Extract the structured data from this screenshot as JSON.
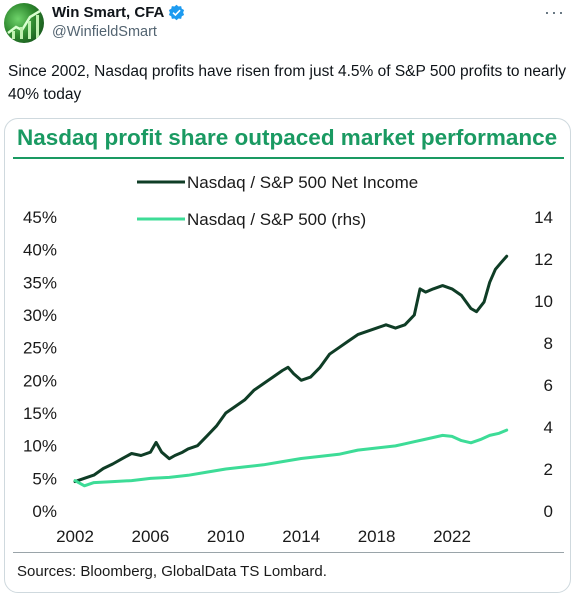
{
  "tweet": {
    "display_name": "Win Smart, CFA",
    "handle": "@WinfieldSmart",
    "more_label": "···",
    "text": "Since 2002, Nasdaq profits have risen from just 4.5% of S&P 500 profits to nearly 40% today"
  },
  "colors": {
    "title": "#1a9a62",
    "net_income_line": "#0f3d26",
    "rhs_line": "#3ddc97",
    "verified": "#1d9bf0"
  },
  "chart_data": {
    "type": "line",
    "title": "Nasdaq profit share outpaced market performance",
    "sources": "Sources: Bloomberg, GlobalData TS Lombard.",
    "x_ticks": [
      "2002",
      "2006",
      "2010",
      "2014",
      "2018",
      "2022"
    ],
    "y_left_ticks": [
      "0%",
      "5%",
      "10%",
      "15%",
      "20%",
      "25%",
      "30%",
      "35%",
      "40%",
      "45%"
    ],
    "y_right_ticks": [
      "0",
      "2",
      "4",
      "6",
      "8",
      "10",
      "12",
      "14"
    ],
    "xlim": [
      2002,
      2025.5
    ],
    "ylim_left": [
      0,
      45
    ],
    "ylim_right": [
      0,
      14
    ],
    "legend_placement": "top-center",
    "series": [
      {
        "name": "Nasdaq / S&P 500 Net Income",
        "axis": "left",
        "x": [
          2002.0,
          2002.5,
          2003.0,
          2003.5,
          2004.0,
          2004.5,
          2005.0,
          2005.5,
          2006.0,
          2006.3,
          2006.6,
          2007.0,
          2007.3,
          2007.7,
          2008.0,
          2008.5,
          2009.0,
          2009.5,
          2010.0,
          2010.5,
          2011.0,
          2011.5,
          2012.0,
          2012.5,
          2013.0,
          2013.3,
          2013.6,
          2014.0,
          2014.5,
          2015.0,
          2015.5,
          2016.0,
          2016.5,
          2017.0,
          2017.5,
          2018.0,
          2018.5,
          2019.0,
          2019.5,
          2020.0,
          2020.3,
          2020.6,
          2021.0,
          2021.5,
          2022.0,
          2022.5,
          2023.0,
          2023.3,
          2023.7,
          2024.0,
          2024.3,
          2024.6,
          2024.9
        ],
        "values": [
          4.5,
          5.0,
          5.5,
          6.5,
          7.2,
          8.0,
          8.8,
          8.5,
          9.0,
          10.5,
          9.0,
          8.0,
          8.5,
          9.0,
          9.5,
          10.0,
          11.5,
          13.0,
          15.0,
          16.0,
          17.0,
          18.5,
          19.5,
          20.5,
          21.5,
          22.0,
          21.0,
          20.0,
          20.5,
          22.0,
          24.0,
          25.0,
          26.0,
          27.0,
          27.5,
          28.0,
          28.5,
          28.0,
          28.5,
          30.0,
          34.0,
          33.5,
          34.0,
          34.5,
          34.0,
          33.0,
          31.0,
          30.5,
          32.0,
          35.0,
          37.0,
          38.0,
          39.0
        ]
      },
      {
        "name": "Nasdaq / S&P 500 (rhs)",
        "axis": "right",
        "x": [
          2002.0,
          2002.5,
          2003.0,
          2004.0,
          2005.0,
          2006.0,
          2007.0,
          2008.0,
          2009.0,
          2010.0,
          2011.0,
          2012.0,
          2013.0,
          2014.0,
          2015.0,
          2016.0,
          2017.0,
          2018.0,
          2019.0,
          2019.5,
          2020.0,
          2020.5,
          2021.0,
          2021.5,
          2022.0,
          2022.5,
          2023.0,
          2023.5,
          2024.0,
          2024.5,
          2024.9
        ],
        "values": [
          1.45,
          1.2,
          1.35,
          1.4,
          1.45,
          1.55,
          1.6,
          1.7,
          1.85,
          2.0,
          2.1,
          2.2,
          2.35,
          2.5,
          2.6,
          2.7,
          2.9,
          3.0,
          3.1,
          3.2,
          3.3,
          3.4,
          3.5,
          3.6,
          3.55,
          3.35,
          3.25,
          3.4,
          3.6,
          3.7,
          3.85
        ]
      }
    ]
  }
}
